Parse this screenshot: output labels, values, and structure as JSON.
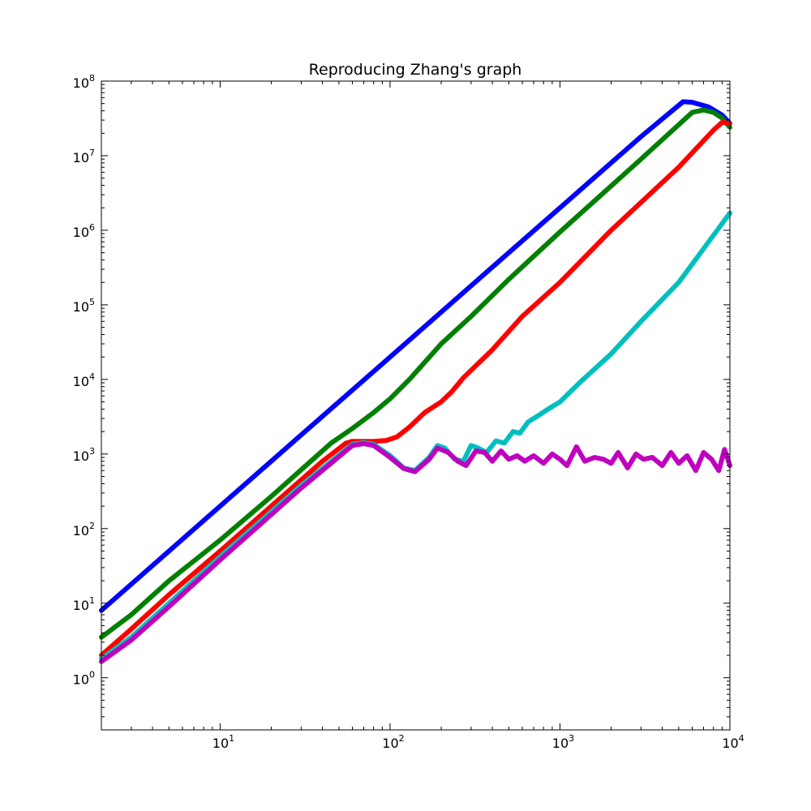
{
  "chart_data": {
    "type": "line",
    "title": "Reproducing Zhang's graph",
    "xlabel": "",
    "ylabel": "",
    "x_scale": "log",
    "y_scale": "log",
    "xlim": [
      2,
      10000
    ],
    "ylim": [
      0.2,
      100000000
    ],
    "grid": false,
    "legend": "none",
    "x_ticks": [
      {
        "value": 10,
        "base": "10",
        "exp": "1"
      },
      {
        "value": 100,
        "base": "10",
        "exp": "2"
      },
      {
        "value": 1000,
        "base": "10",
        "exp": "3"
      },
      {
        "value": 10000,
        "base": "10",
        "exp": "4"
      }
    ],
    "y_ticks": [
      {
        "value": 1,
        "base": "10",
        "exp": "0"
      },
      {
        "value": 10,
        "base": "10",
        "exp": "1"
      },
      {
        "value": 100,
        "base": "10",
        "exp": "2"
      },
      {
        "value": 1000,
        "base": "10",
        "exp": "3"
      },
      {
        "value": 10000,
        "base": "10",
        "exp": "4"
      },
      {
        "value": 100000,
        "base": "10",
        "exp": "5"
      },
      {
        "value": 1000000,
        "base": "10",
        "exp": "6"
      },
      {
        "value": 10000000,
        "base": "10",
        "exp": "7"
      },
      {
        "value": 100000000,
        "base": "10",
        "exp": "8"
      }
    ],
    "series": [
      {
        "color": "#0000ff",
        "points": [
          [
            2,
            8
          ],
          [
            5,
            50
          ],
          [
            10,
            200
          ],
          [
            30,
            1800
          ],
          [
            100,
            20000
          ],
          [
            300,
            180000
          ],
          [
            1000,
            2000000
          ],
          [
            3000,
            18000000
          ],
          [
            5300,
            53000000
          ],
          [
            6000,
            52000000
          ],
          [
            7500,
            45000000
          ],
          [
            9000,
            35000000
          ],
          [
            10000,
            27000000
          ]
        ]
      },
      {
        "color": "#008000",
        "points": [
          [
            2,
            3.5
          ],
          [
            3,
            7
          ],
          [
            5,
            20
          ],
          [
            10,
            70
          ],
          [
            20,
            270
          ],
          [
            45,
            1400
          ],
          [
            60,
            2200
          ],
          [
            80,
            3600
          ],
          [
            100,
            5500
          ],
          [
            130,
            10000
          ],
          [
            200,
            30000
          ],
          [
            300,
            70000
          ],
          [
            500,
            220000
          ],
          [
            1000,
            950000
          ],
          [
            3000,
            9000000
          ],
          [
            6000,
            38000000
          ],
          [
            7000,
            41000000
          ],
          [
            8000,
            38000000
          ],
          [
            9000,
            32000000
          ],
          [
            10000,
            24000000
          ]
        ]
      },
      {
        "color": "#ff0000",
        "points": [
          [
            2,
            2
          ],
          [
            3,
            4.5
          ],
          [
            5,
            13
          ],
          [
            10,
            50
          ],
          [
            20,
            200
          ],
          [
            40,
            800
          ],
          [
            55,
            1400
          ],
          [
            60,
            1480
          ],
          [
            80,
            1480
          ],
          [
            95,
            1520
          ],
          [
            110,
            1700
          ],
          [
            130,
            2300
          ],
          [
            160,
            3600
          ],
          [
            200,
            5000
          ],
          [
            230,
            6800
          ],
          [
            270,
            10500
          ],
          [
            400,
            25000
          ],
          [
            600,
            70000
          ],
          [
            1000,
            200000
          ],
          [
            2000,
            1000000
          ],
          [
            5000,
            7000000
          ],
          [
            8000,
            22000000
          ],
          [
            9000,
            28000000
          ],
          [
            10000,
            27000000
          ]
        ]
      },
      {
        "color": "#00bfbf",
        "points": [
          [
            2,
            1.8
          ],
          [
            3,
            3.5
          ],
          [
            5,
            10
          ],
          [
            10,
            42
          ],
          [
            30,
            380
          ],
          [
            60,
            1350
          ],
          [
            70,
            1420
          ],
          [
            80,
            1350
          ],
          [
            100,
            950
          ],
          [
            120,
            650
          ],
          [
            140,
            600
          ],
          [
            170,
            900
          ],
          [
            190,
            1300
          ],
          [
            210,
            1200
          ],
          [
            240,
            850
          ],
          [
            270,
            800
          ],
          [
            300,
            1300
          ],
          [
            330,
            1200
          ],
          [
            370,
            1050
          ],
          [
            420,
            1500
          ],
          [
            470,
            1400
          ],
          [
            530,
            2000
          ],
          [
            580,
            1900
          ],
          [
            650,
            2700
          ],
          [
            750,
            3300
          ],
          [
            850,
            4000
          ],
          [
            1000,
            5000
          ],
          [
            1300,
            9000
          ],
          [
            2000,
            22000
          ],
          [
            3000,
            60000
          ],
          [
            5000,
            200000
          ],
          [
            10000,
            1700000
          ]
        ]
      },
      {
        "color": "#bf00bf",
        "points": [
          [
            2,
            1.65
          ],
          [
            3,
            3.2
          ],
          [
            5,
            9
          ],
          [
            10,
            38
          ],
          [
            30,
            350
          ],
          [
            60,
            1300
          ],
          [
            70,
            1380
          ],
          [
            80,
            1300
          ],
          [
            100,
            900
          ],
          [
            120,
            640
          ],
          [
            140,
            580
          ],
          [
            170,
            850
          ],
          [
            190,
            1200
          ],
          [
            220,
            1050
          ],
          [
            250,
            800
          ],
          [
            280,
            700
          ],
          [
            320,
            1100
          ],
          [
            360,
            1050
          ],
          [
            400,
            800
          ],
          [
            450,
            1100
          ],
          [
            500,
            850
          ],
          [
            560,
            950
          ],
          [
            620,
            800
          ],
          [
            700,
            950
          ],
          [
            800,
            750
          ],
          [
            900,
            1000
          ],
          [
            1000,
            850
          ],
          [
            1100,
            700
          ],
          [
            1250,
            1250
          ],
          [
            1400,
            800
          ],
          [
            1600,
            900
          ],
          [
            1800,
            850
          ],
          [
            2000,
            750
          ],
          [
            2200,
            1050
          ],
          [
            2500,
            650
          ],
          [
            2800,
            1000
          ],
          [
            3100,
            850
          ],
          [
            3500,
            900
          ],
          [
            4000,
            700
          ],
          [
            4500,
            1050
          ],
          [
            5000,
            750
          ],
          [
            5600,
            950
          ],
          [
            6300,
            600
          ],
          [
            7000,
            1050
          ],
          [
            7800,
            850
          ],
          [
            8600,
            600
          ],
          [
            9300,
            1150
          ],
          [
            10000,
            700
          ]
        ]
      }
    ]
  }
}
